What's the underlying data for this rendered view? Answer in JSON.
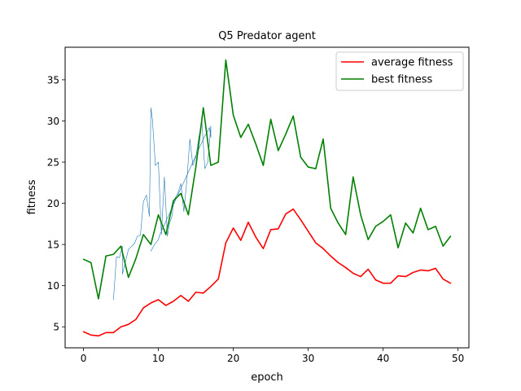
{
  "chart_data": {
    "type": "line",
    "title": "Q5 Predator agent",
    "xlabel": "epoch",
    "ylabel": "fitness",
    "xlim": [
      -2.45,
      51.45
    ],
    "ylim": [
      2.45,
      38.95
    ],
    "xticks": [
      0,
      10,
      20,
      30,
      40,
      50
    ],
    "yticks": [
      5,
      10,
      15,
      20,
      25,
      30,
      35
    ],
    "grid": false,
    "legend_position": "upper right",
    "series": [
      {
        "name": "average fitness",
        "color": "#ff0000",
        "legend": true,
        "x": [
          0,
          1,
          2,
          3,
          4,
          5,
          6,
          7,
          8,
          9,
          10,
          11,
          12,
          13,
          14,
          15,
          16,
          17,
          18,
          19,
          20,
          21,
          22,
          23,
          24,
          25,
          26,
          27,
          28,
          29,
          30,
          31,
          32,
          33,
          34,
          35,
          36,
          37,
          38,
          39,
          40,
          41,
          42,
          43,
          44,
          45,
          46,
          47,
          48,
          49
        ],
        "y": [
          4.4,
          4.0,
          3.9,
          4.3,
          4.3,
          5.0,
          5.3,
          5.9,
          7.3,
          7.9,
          8.3,
          7.6,
          8.1,
          8.8,
          8.1,
          9.2,
          9.1,
          9.9,
          10.8,
          15.2,
          17.0,
          15.5,
          17.7,
          15.9,
          14.5,
          16.8,
          16.9,
          18.7,
          19.3,
          18.0,
          16.6,
          15.2,
          14.5,
          13.6,
          12.8,
          12.2,
          11.5,
          11.1,
          12.0,
          10.7,
          10.3,
          10.3,
          11.2,
          11.1,
          11.6,
          11.9,
          11.8,
          12.1,
          10.8,
          10.3
        ]
      },
      {
        "name": "best fitness",
        "color": "#008000",
        "legend": true,
        "x": [
          0,
          1,
          2,
          3,
          4,
          5,
          6,
          7,
          8,
          9,
          10,
          11,
          12,
          13,
          14,
          15,
          16,
          17,
          18,
          19,
          20,
          21,
          22,
          23,
          24,
          25,
          26,
          27,
          28,
          29,
          30,
          31,
          32,
          33,
          34,
          35,
          36,
          37,
          38,
          39,
          40,
          41,
          42,
          43,
          44,
          45,
          46,
          47,
          48,
          49
        ],
        "y": [
          13.2,
          12.8,
          8.4,
          13.6,
          13.8,
          14.8,
          11.0,
          13.3,
          16.2,
          15.0,
          18.6,
          16.2,
          20.3,
          21.2,
          18.6,
          24.4,
          31.6,
          24.6,
          25.0,
          37.4,
          30.7,
          28.0,
          29.6,
          27.2,
          24.6,
          30.2,
          26.4,
          28.4,
          30.6,
          25.6,
          24.4,
          24.2,
          27.8,
          19.4,
          17.6,
          16.2,
          23.2,
          18.6,
          15.6,
          17.2,
          17.8,
          18.6,
          14.6,
          17.6,
          16.4,
          19.4,
          16.8,
          17.2,
          14.8,
          16.0
        ]
      },
      {
        "name": "",
        "color": "#1f77b4",
        "legend": false,
        "x": [
          4.0,
          4.4,
          4.8,
          5.2,
          5.2,
          6.0,
          6.8,
          7.2,
          7.6,
          8.0,
          8.4,
          8.8,
          9.0,
          9.2,
          9.6,
          10.0,
          10.4,
          10.8,
          11.2,
          11.5,
          11.8,
          12.0,
          12.2,
          12.6,
          13.0,
          13.4,
          13.8,
          14.2,
          14.6,
          15.0,
          15.4,
          15.8,
          16.2,
          16.6,
          17.0,
          17.0,
          16.8,
          16.5,
          16.2,
          15.9,
          15.6,
          15.3,
          15.0,
          14.7,
          14.4,
          14.1,
          13.8,
          13.5,
          13.2,
          12.9,
          12.6,
          12.3,
          12.0,
          11.7,
          11.4,
          11.1,
          10.8,
          10.5,
          10.2,
          10.0,
          9.5,
          9.0
        ],
        "y": [
          8.3,
          13.5,
          13.4,
          14.8,
          11.4,
          14.4,
          15.1,
          16.0,
          16.1,
          20.2,
          21.0,
          18.4,
          31.6,
          30.2,
          24.6,
          25.0,
          16.2,
          23.2,
          16.0,
          17.6,
          18.4,
          19.8,
          20.6,
          21.2,
          22.4,
          19.0,
          22.8,
          27.8,
          24.6,
          25.6,
          28.0,
          30.0,
          24.2,
          25.0,
          29.4,
          28.0,
          29.2,
          28.6,
          28.2,
          27.6,
          27.0,
          26.4,
          25.8,
          25.2,
          24.6,
          24.0,
          23.4,
          22.8,
          22.2,
          21.6,
          21.0,
          20.4,
          19.8,
          19.2,
          18.6,
          18.0,
          17.4,
          16.8,
          16.2,
          15.6,
          15.0,
          14.2
        ]
      }
    ]
  }
}
